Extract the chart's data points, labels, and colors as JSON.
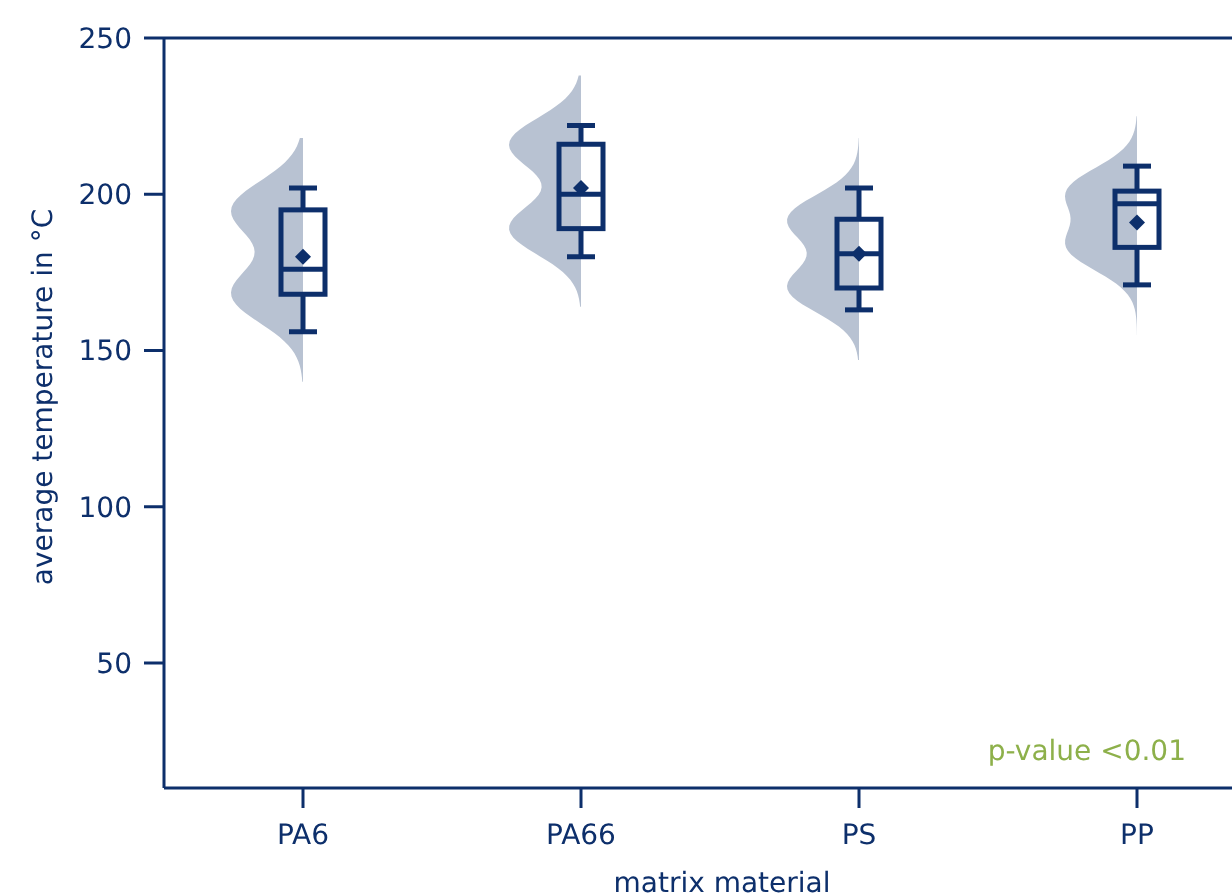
{
  "chart_data": {
    "type": "box",
    "xlabel": "matrix material",
    "ylabel": "average temperature in °C",
    "categories": [
      "PA6",
      "PA66",
      "PS",
      "PP"
    ],
    "color": "#0d2f6b",
    "boxes": [
      {
        "low": 156,
        "q1": 168,
        "median": 176,
        "q3": 195,
        "high": 202,
        "mean": 180
      },
      {
        "low": 180,
        "q1": 189,
        "median": 200,
        "q3": 216,
        "high": 222,
        "mean": 202
      },
      {
        "low": 163,
        "q1": 170,
        "median": 181,
        "q3": 192,
        "high": 202,
        "mean": 181
      },
      {
        "low": 171,
        "q1": 183,
        "median": 197,
        "q3": 201,
        "high": 209,
        "mean": 191
      }
    ],
    "ylim": [
      10,
      250
    ],
    "yticks": [
      50,
      100,
      150,
      200,
      250
    ],
    "annotations": [
      "p-value <0.01"
    ]
  }
}
